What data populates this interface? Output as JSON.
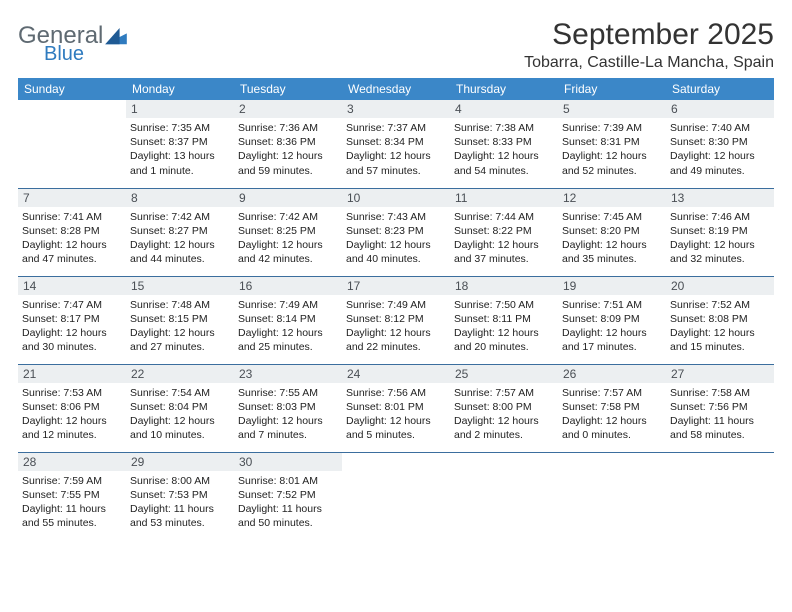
{
  "brand": {
    "part1": "General",
    "part2": "Blue",
    "shape_color": "#2f7bbf"
  },
  "title": "September 2025",
  "location": "Tobarra, Castille-La Mancha, Spain",
  "colors": {
    "header_bg": "#3b87c8",
    "header_text": "#ffffff",
    "daynum_bg": "#eceff1",
    "row_divider": "#3b6e9e",
    "text": "#222222",
    "title_text": "#333333"
  },
  "day_headers": [
    "Sunday",
    "Monday",
    "Tuesday",
    "Wednesday",
    "Thursday",
    "Friday",
    "Saturday"
  ],
  "weeks": [
    [
      null,
      {
        "n": "1",
        "sr": "Sunrise: 7:35 AM",
        "ss": "Sunset: 8:37 PM",
        "dl": "Daylight: 13 hours and 1 minute."
      },
      {
        "n": "2",
        "sr": "Sunrise: 7:36 AM",
        "ss": "Sunset: 8:36 PM",
        "dl": "Daylight: 12 hours and 59 minutes."
      },
      {
        "n": "3",
        "sr": "Sunrise: 7:37 AM",
        "ss": "Sunset: 8:34 PM",
        "dl": "Daylight: 12 hours and 57 minutes."
      },
      {
        "n": "4",
        "sr": "Sunrise: 7:38 AM",
        "ss": "Sunset: 8:33 PM",
        "dl": "Daylight: 12 hours and 54 minutes."
      },
      {
        "n": "5",
        "sr": "Sunrise: 7:39 AM",
        "ss": "Sunset: 8:31 PM",
        "dl": "Daylight: 12 hours and 52 minutes."
      },
      {
        "n": "6",
        "sr": "Sunrise: 7:40 AM",
        "ss": "Sunset: 8:30 PM",
        "dl": "Daylight: 12 hours and 49 minutes."
      }
    ],
    [
      {
        "n": "7",
        "sr": "Sunrise: 7:41 AM",
        "ss": "Sunset: 8:28 PM",
        "dl": "Daylight: 12 hours and 47 minutes."
      },
      {
        "n": "8",
        "sr": "Sunrise: 7:42 AM",
        "ss": "Sunset: 8:27 PM",
        "dl": "Daylight: 12 hours and 44 minutes."
      },
      {
        "n": "9",
        "sr": "Sunrise: 7:42 AM",
        "ss": "Sunset: 8:25 PM",
        "dl": "Daylight: 12 hours and 42 minutes."
      },
      {
        "n": "10",
        "sr": "Sunrise: 7:43 AM",
        "ss": "Sunset: 8:23 PM",
        "dl": "Daylight: 12 hours and 40 minutes."
      },
      {
        "n": "11",
        "sr": "Sunrise: 7:44 AM",
        "ss": "Sunset: 8:22 PM",
        "dl": "Daylight: 12 hours and 37 minutes."
      },
      {
        "n": "12",
        "sr": "Sunrise: 7:45 AM",
        "ss": "Sunset: 8:20 PM",
        "dl": "Daylight: 12 hours and 35 minutes."
      },
      {
        "n": "13",
        "sr": "Sunrise: 7:46 AM",
        "ss": "Sunset: 8:19 PM",
        "dl": "Daylight: 12 hours and 32 minutes."
      }
    ],
    [
      {
        "n": "14",
        "sr": "Sunrise: 7:47 AM",
        "ss": "Sunset: 8:17 PM",
        "dl": "Daylight: 12 hours and 30 minutes."
      },
      {
        "n": "15",
        "sr": "Sunrise: 7:48 AM",
        "ss": "Sunset: 8:15 PM",
        "dl": "Daylight: 12 hours and 27 minutes."
      },
      {
        "n": "16",
        "sr": "Sunrise: 7:49 AM",
        "ss": "Sunset: 8:14 PM",
        "dl": "Daylight: 12 hours and 25 minutes."
      },
      {
        "n": "17",
        "sr": "Sunrise: 7:49 AM",
        "ss": "Sunset: 8:12 PM",
        "dl": "Daylight: 12 hours and 22 minutes."
      },
      {
        "n": "18",
        "sr": "Sunrise: 7:50 AM",
        "ss": "Sunset: 8:11 PM",
        "dl": "Daylight: 12 hours and 20 minutes."
      },
      {
        "n": "19",
        "sr": "Sunrise: 7:51 AM",
        "ss": "Sunset: 8:09 PM",
        "dl": "Daylight: 12 hours and 17 minutes."
      },
      {
        "n": "20",
        "sr": "Sunrise: 7:52 AM",
        "ss": "Sunset: 8:08 PM",
        "dl": "Daylight: 12 hours and 15 minutes."
      }
    ],
    [
      {
        "n": "21",
        "sr": "Sunrise: 7:53 AM",
        "ss": "Sunset: 8:06 PM",
        "dl": "Daylight: 12 hours and 12 minutes."
      },
      {
        "n": "22",
        "sr": "Sunrise: 7:54 AM",
        "ss": "Sunset: 8:04 PM",
        "dl": "Daylight: 12 hours and 10 minutes."
      },
      {
        "n": "23",
        "sr": "Sunrise: 7:55 AM",
        "ss": "Sunset: 8:03 PM",
        "dl": "Daylight: 12 hours and 7 minutes."
      },
      {
        "n": "24",
        "sr": "Sunrise: 7:56 AM",
        "ss": "Sunset: 8:01 PM",
        "dl": "Daylight: 12 hours and 5 minutes."
      },
      {
        "n": "25",
        "sr": "Sunrise: 7:57 AM",
        "ss": "Sunset: 8:00 PM",
        "dl": "Daylight: 12 hours and 2 minutes."
      },
      {
        "n": "26",
        "sr": "Sunrise: 7:57 AM",
        "ss": "Sunset: 7:58 PM",
        "dl": "Daylight: 12 hours and 0 minutes."
      },
      {
        "n": "27",
        "sr": "Sunrise: 7:58 AM",
        "ss": "Sunset: 7:56 PM",
        "dl": "Daylight: 11 hours and 58 minutes."
      }
    ],
    [
      {
        "n": "28",
        "sr": "Sunrise: 7:59 AM",
        "ss": "Sunset: 7:55 PM",
        "dl": "Daylight: 11 hours and 55 minutes."
      },
      {
        "n": "29",
        "sr": "Sunrise: 8:00 AM",
        "ss": "Sunset: 7:53 PM",
        "dl": "Daylight: 11 hours and 53 minutes."
      },
      {
        "n": "30",
        "sr": "Sunrise: 8:01 AM",
        "ss": "Sunset: 7:52 PM",
        "dl": "Daylight: 11 hours and 50 minutes."
      },
      null,
      null,
      null,
      null
    ]
  ]
}
